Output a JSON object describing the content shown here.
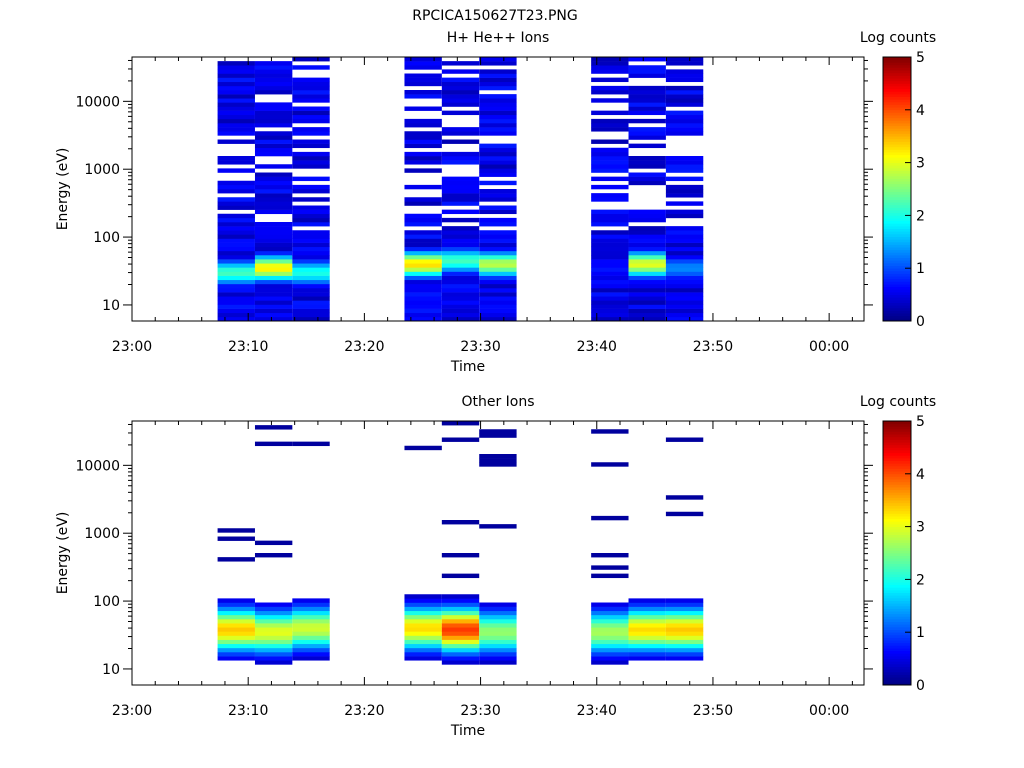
{
  "figure": {
    "title": "RPCICA150627T23.PNG"
  },
  "chart_data": [
    {
      "type": "heatmap",
      "title": "H+ He++ Ions",
      "xlabel": "Time",
      "ylabel": "Energy (eV)",
      "x_ticks": [
        "23:00",
        "23:10",
        "23:20",
        "23:30",
        "23:40",
        "23:50",
        "00:00"
      ],
      "x_range": [
        "23:00",
        "00:03"
      ],
      "y_scale": "log",
      "y_ticks": [
        "10",
        "100",
        "1000",
        "10000"
      ],
      "y_range": [
        5.8,
        45000
      ],
      "colorbar": {
        "label": "Log counts",
        "ticks": [
          "0",
          "1",
          "2",
          "3",
          "4",
          "5"
        ],
        "range": [
          0,
          5
        ],
        "colormap": "jet"
      },
      "time_blocks": [
        {
          "start": "23:07:22",
          "end": "23:10:35",
          "peak_energy_eV": 30,
          "peak_log_counts": 2.2
        },
        {
          "start": "23:10:35",
          "end": "23:13:48",
          "peak_energy_eV": 35,
          "peak_log_counts": 3.2
        },
        {
          "start": "23:13:48",
          "end": "23:17:01",
          "peak_energy_eV": 30,
          "peak_log_counts": 2.0
        },
        {
          "start": "23:23:27",
          "end": "23:26:40",
          "peak_energy_eV": 40,
          "peak_log_counts": 3.3
        },
        {
          "start": "23:26:40",
          "end": "23:29:53",
          "peak_energy_eV": 45,
          "peak_log_counts": 2.2
        },
        {
          "start": "23:29:53",
          "end": "23:33:06",
          "peak_energy_eV": 40,
          "peak_log_counts": 2.8
        },
        {
          "start": "23:39:31",
          "end": "23:42:44",
          "peak_energy_eV": 30,
          "peak_log_counts": 0.6
        },
        {
          "start": "23:42:44",
          "end": "23:45:57",
          "peak_energy_eV": 40,
          "peak_log_counts": 3.0
        },
        {
          "start": "23:45:57",
          "end": "23:49:10",
          "peak_energy_eV": 35,
          "peak_log_counts": 1.3
        }
      ]
    },
    {
      "type": "heatmap",
      "title": "Other Ions",
      "xlabel": "Time",
      "ylabel": "Energy (eV)",
      "x_ticks": [
        "23:00",
        "23:10",
        "23:20",
        "23:30",
        "23:40",
        "23:50",
        "00:00"
      ],
      "x_range": [
        "23:00",
        "00:03"
      ],
      "y_scale": "log",
      "y_ticks": [
        "10",
        "100",
        "1000",
        "10000"
      ],
      "y_range": [
        5.8,
        45000
      ],
      "colorbar": {
        "label": "Log counts",
        "ticks": [
          "0",
          "1",
          "2",
          "3",
          "4",
          "5"
        ],
        "range": [
          0,
          5
        ],
        "colormap": "jet"
      },
      "time_blocks": [
        {
          "start": "23:07:22",
          "end": "23:10:35",
          "peak_energy_eV": 38,
          "peak_log_counts": 3.4
        },
        {
          "start": "23:10:35",
          "end": "23:13:48",
          "peak_energy_eV": 35,
          "peak_log_counts": 3.0
        },
        {
          "start": "23:13:48",
          "end": "23:17:01",
          "peak_energy_eV": 40,
          "peak_log_counts": 2.9
        },
        {
          "start": "23:23:27",
          "end": "23:26:40",
          "peak_energy_eV": 40,
          "peak_log_counts": 3.3
        },
        {
          "start": "23:26:40",
          "end": "23:29:53",
          "peak_energy_eV": 38,
          "peak_log_counts": 4.1
        },
        {
          "start": "23:29:53",
          "end": "23:33:06",
          "peak_energy_eV": 35,
          "peak_log_counts": 2.6
        },
        {
          "start": "23:39:31",
          "end": "23:42:44",
          "peak_energy_eV": 35,
          "peak_log_counts": 2.7
        },
        {
          "start": "23:42:44",
          "end": "23:45:57",
          "peak_energy_eV": 38,
          "peak_log_counts": 3.3
        },
        {
          "start": "23:45:57",
          "end": "23:49:10",
          "peak_energy_eV": 38,
          "peak_log_counts": 3.4
        }
      ]
    }
  ]
}
